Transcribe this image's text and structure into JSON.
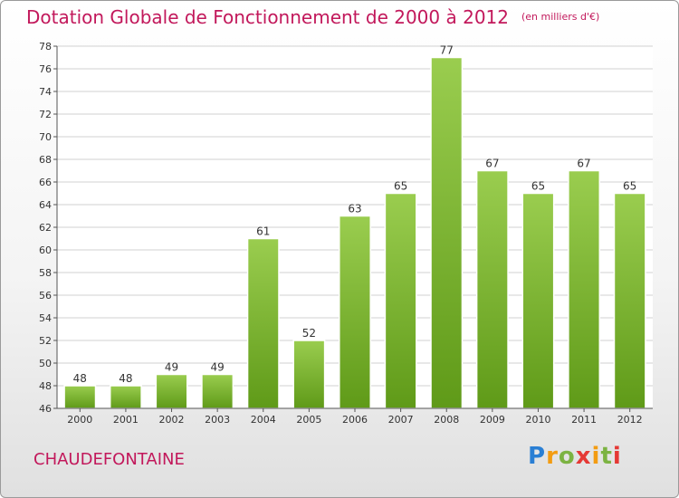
{
  "header": {
    "title": "Dotation Globale de Fonctionnement de 2000 à 2012",
    "unit": "(en milliers d'€)"
  },
  "footer": {
    "commune": "CHAUDEFONTAINE",
    "logo": "Proxiti"
  },
  "colors": {
    "title": "#c2185b",
    "bar_light": "#9acd4f",
    "bar_dark": "#5f9a18",
    "grid": "#d0d0d0"
  },
  "chart_data": {
    "type": "bar",
    "categories": [
      "2000",
      "2001",
      "2002",
      "2003",
      "2004",
      "2005",
      "2006",
      "2007",
      "2008",
      "2009",
      "2010",
      "2011",
      "2012"
    ],
    "values": [
      48,
      48,
      49,
      49,
      61,
      52,
      63,
      65,
      77,
      67,
      65,
      67,
      65
    ],
    "title": "Dotation Globale de Fonctionnement de 2000 à 2012",
    "ylabel": "",
    "xlabel": "",
    "ylim": [
      46,
      78
    ],
    "yticks": [
      46,
      48,
      50,
      52,
      54,
      56,
      58,
      60,
      62,
      64,
      66,
      68,
      70,
      72,
      74,
      76,
      78
    ],
    "grid": true
  }
}
